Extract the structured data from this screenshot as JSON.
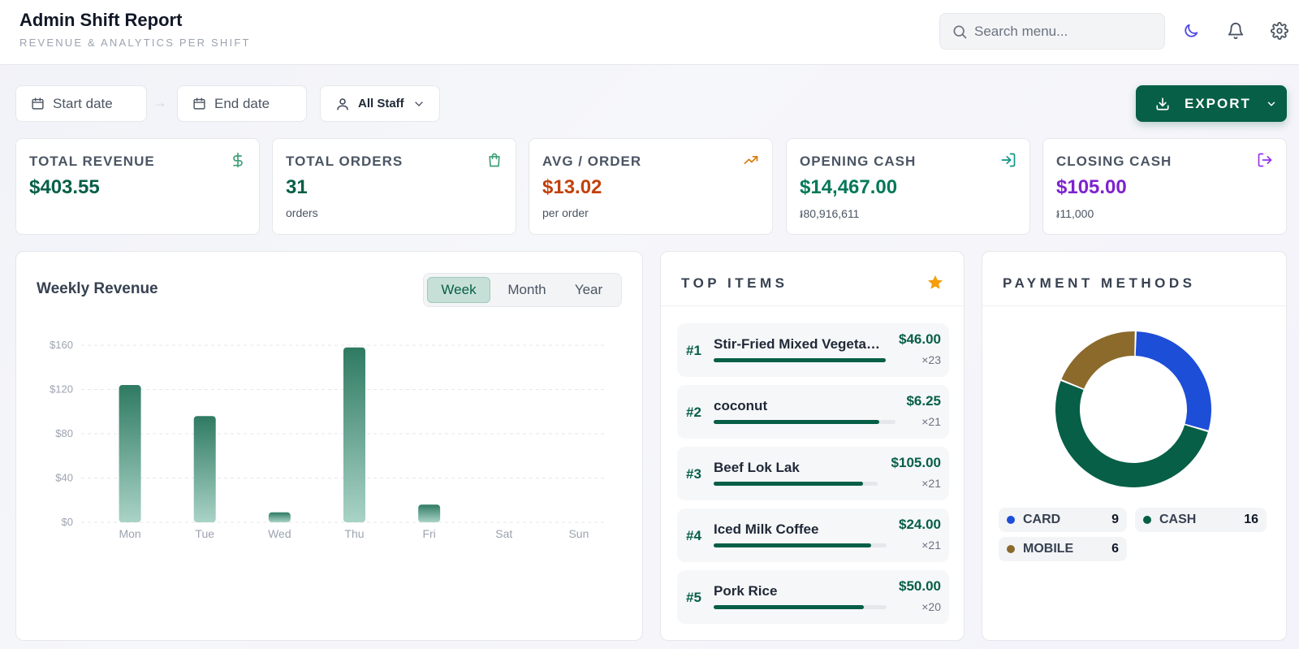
{
  "header": {
    "title": "Admin Shift Report",
    "subtitle": "REVENUE & ANALYTICS PER SHIFT",
    "search_placeholder": "Search menu..."
  },
  "filters": {
    "start_placeholder": "Start date",
    "end_placeholder": "End date",
    "arrow": "→",
    "staff_label": "All Staff",
    "export_label": "EXPORT"
  },
  "kpis": [
    {
      "label": "TOTAL REVENUE",
      "value": "$403.55",
      "sub": "",
      "color": "#065f46",
      "icon": "dollar-icon"
    },
    {
      "label": "TOTAL ORDERS",
      "value": "31",
      "sub": "orders",
      "color": "#065f46",
      "icon": "shopping-bag-icon"
    },
    {
      "label": "AVG / ORDER",
      "value": "$13.02",
      "sub": "per order",
      "color": "#c2410c",
      "icon": "trending-up-icon"
    },
    {
      "label": "OPENING CASH",
      "value": "$14,467.00",
      "sub": "៛80,916,611",
      "color": "#047857",
      "icon": "login-icon"
    },
    {
      "label": "CLOSING CASH",
      "value": "$105.00",
      "sub": "៛11,000",
      "color": "#7e22ce",
      "icon": "logout-icon"
    }
  ],
  "chart": {
    "title": "Weekly Revenue",
    "tabs": [
      "Week",
      "Month",
      "Year"
    ],
    "active_tab": "Week"
  },
  "chart_data": {
    "type": "bar",
    "title": "Weekly Revenue",
    "categories": [
      "Mon",
      "Tue",
      "Wed",
      "Thu",
      "Fri",
      "Sat",
      "Sun"
    ],
    "values": [
      124,
      96,
      9,
      158,
      16,
      0,
      0
    ],
    "ylim": [
      0,
      160
    ],
    "yticks": [
      0,
      40,
      80,
      120,
      160
    ],
    "ytick_labels": [
      "$0",
      "$40",
      "$80",
      "$120",
      "$160"
    ],
    "grid": true,
    "xlabel": "",
    "ylabel": ""
  },
  "top_items": {
    "title": "TOP ITEMS",
    "items": [
      {
        "rank": "#1",
        "name": "Stir-Fried Mixed Vegetables",
        "price": "$46.00",
        "qty": "×23",
        "share": 1.0
      },
      {
        "rank": "#2",
        "name": "coconut",
        "price": "$6.25",
        "qty": "×21",
        "share": 0.91
      },
      {
        "rank": "#3",
        "name": "Beef Lok Lak",
        "price": "$105.00",
        "qty": "×21",
        "share": 0.91
      },
      {
        "rank": "#4",
        "name": "Iced Milk Coffee",
        "price": "$24.00",
        "qty": "×21",
        "share": 0.91
      },
      {
        "rank": "#5",
        "name": "Pork Rice",
        "price": "$50.00",
        "qty": "×20",
        "share": 0.87
      }
    ]
  },
  "payment_methods": {
    "title": "PAYMENT METHODS",
    "methods": [
      {
        "name": "CARD",
        "count": "9",
        "value": 9,
        "color": "#1d4ed8"
      },
      {
        "name": "CASH",
        "count": "16",
        "value": 16,
        "color": "#065f46"
      },
      {
        "name": "MOBILE",
        "count": "6",
        "value": 6,
        "color": "#8b6a2b"
      }
    ]
  },
  "colors": {
    "brand": "#065f46",
    "accent_orange": "#c2410c",
    "accent_purple": "#7e22ce"
  }
}
